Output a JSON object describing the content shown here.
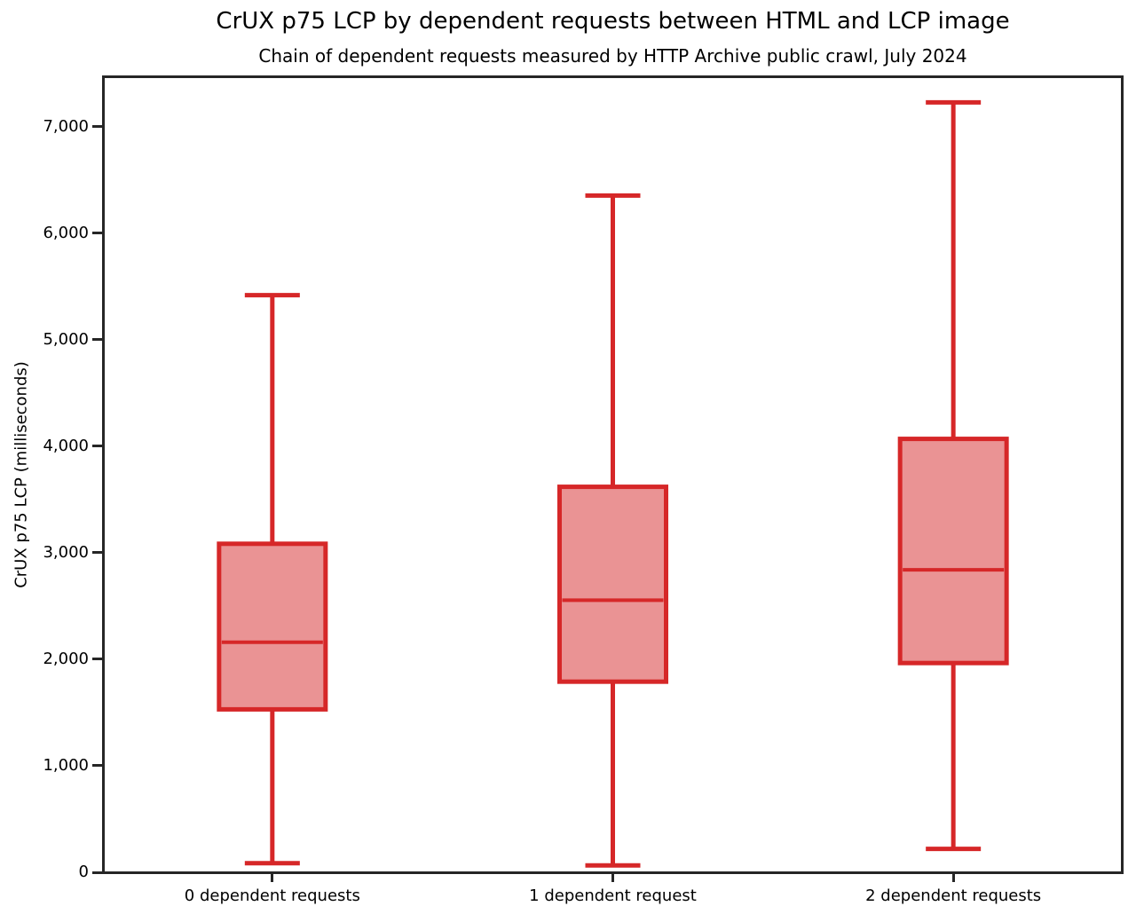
{
  "figure": {
    "title": "CrUX p75 LCP by dependent requests between HTML and LCP image",
    "subtitle": "Chain of dependent requests measured by HTTP Archive public crawl, July 2024"
  },
  "chart_data": {
    "type": "boxplot",
    "title": "CrUX p75 LCP by dependent requests between HTML and LCP image",
    "subtitle": "Chain of dependent requests measured by HTTP Archive public crawl, July 2024",
    "xlabel": "",
    "ylabel": "CrUX p75 LCP (milliseconds)",
    "ylim": [
      0,
      7483
    ],
    "grid": false,
    "legend_position": "none",
    "yticks": [
      {
        "value": 0,
        "label": "0"
      },
      {
        "value": 1000,
        "label": "1,000"
      },
      {
        "value": 2000,
        "label": "2,000"
      },
      {
        "value": 3000,
        "label": "3,000"
      },
      {
        "value": 4000,
        "label": "4,000"
      },
      {
        "value": 5000,
        "label": "5,000"
      },
      {
        "value": 6000,
        "label": "6,000"
      },
      {
        "value": 7000,
        "label": "7,000"
      }
    ],
    "categories": [
      "0 dependent requests",
      "1 dependent request",
      "2 dependent requests"
    ],
    "series": [
      {
        "category": "0 dependent requests",
        "whisker_low": 85,
        "q1": 1530,
        "median": 2160,
        "q3": 3085,
        "whisker_high": 5420
      },
      {
        "category": "1 dependent request",
        "whisker_low": 65,
        "q1": 1790,
        "median": 2555,
        "q3": 3620,
        "whisker_high": 6355
      },
      {
        "category": "2 dependent requests",
        "whisker_low": 220,
        "q1": 1965,
        "median": 2840,
        "q3": 4070,
        "whisker_high": 7230
      }
    ],
    "colors": {
      "box_fill": "#ea9394",
      "box_edge": "#d62728",
      "whisker": "#d62728",
      "median": "#d62728",
      "spine": "#262626",
      "text": "#000000"
    }
  }
}
